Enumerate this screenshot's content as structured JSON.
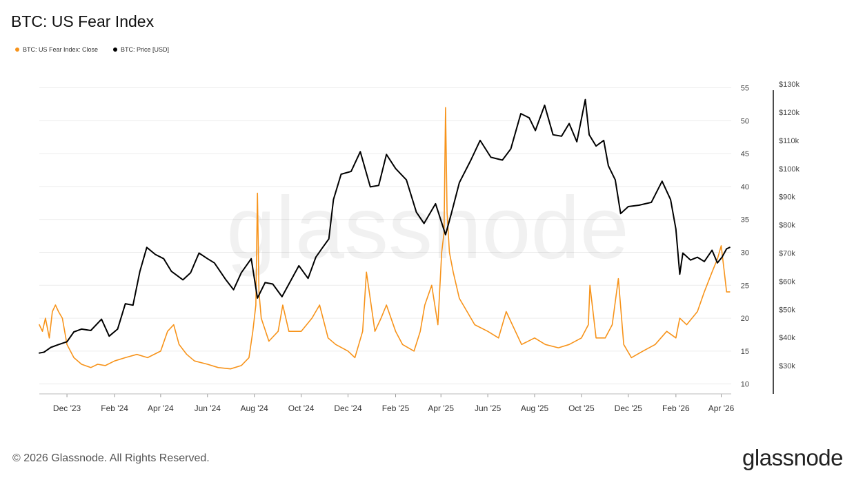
{
  "title": "BTC: US Fear Index",
  "legend": [
    {
      "label": "BTC: US Fear Index: Close",
      "color": "#f7931a"
    },
    {
      "label": "BTC: Price [USD]",
      "color": "#000000"
    }
  ],
  "footer": "© 2026 Glassnode. All Rights Reserved.",
  "brand": "glassnode",
  "watermark": "glassnode",
  "chart_data": {
    "type": "line",
    "x_tick_labels": [
      "Dec '23",
      "Feb '24",
      "Apr '24",
      "Jun '24",
      "Aug '24",
      "Oct '24",
      "Dec '24",
      "Feb '25",
      "Apr '25",
      "Jun '25",
      "Aug '25",
      "Oct '25",
      "Dec '25",
      "Feb '26",
      "Apr '26"
    ],
    "x_tick_dates": [
      "2023-12-01",
      "2024-02-01",
      "2024-04-01",
      "2024-06-01",
      "2024-08-01",
      "2024-10-01",
      "2024-12-01",
      "2025-02-01",
      "2025-04-01",
      "2025-06-01",
      "2025-08-01",
      "2025-10-01",
      "2025-12-01",
      "2026-02-01",
      "2026-04-01"
    ],
    "x_range": [
      "2023-10-26",
      "2026-04-14"
    ],
    "left_axis": {
      "ticks": [
        10,
        15,
        20,
        25,
        30,
        35,
        40,
        45,
        50,
        55
      ],
      "range": [
        8.5,
        56
      ]
    },
    "right_axis": {
      "ticks": [
        "$30k",
        "$40k",
        "$50k",
        "$60k",
        "$70k",
        "$80k",
        "$90k",
        "$100k",
        "$110k",
        "$120k",
        "$130k"
      ],
      "values": [
        30000,
        40000,
        50000,
        60000,
        70000,
        80000,
        90000,
        100000,
        110000,
        120000,
        130000
      ],
      "range": [
        20000,
        131000
      ]
    },
    "grid": true,
    "series": [
      {
        "name": "BTC: US Fear Index: Close",
        "axis": "left",
        "color": "#f7931a",
        "x": [
          "2023-10-26",
          "2023-10-30",
          "2023-11-03",
          "2023-11-08",
          "2023-11-12",
          "2023-11-16",
          "2023-11-20",
          "2023-11-25",
          "2023-12-01",
          "2023-12-10",
          "2023-12-20",
          "2024-01-01",
          "2024-01-10",
          "2024-01-20",
          "2024-02-01",
          "2024-02-15",
          "2024-03-01",
          "2024-03-15",
          "2024-04-01",
          "2024-04-10",
          "2024-04-18",
          "2024-04-25",
          "2024-05-05",
          "2024-05-15",
          "2024-06-01",
          "2024-06-15",
          "2024-07-01",
          "2024-07-15",
          "2024-07-25",
          "2024-07-30",
          "2024-08-03",
          "2024-08-05",
          "2024-08-07",
          "2024-08-10",
          "2024-08-20",
          "2024-09-01",
          "2024-09-07",
          "2024-09-15",
          "2024-10-01",
          "2024-10-15",
          "2024-10-25",
          "2024-11-05",
          "2024-11-15",
          "2024-12-01",
          "2024-12-10",
          "2024-12-20",
          "2024-12-25",
          "2025-01-05",
          "2025-01-13",
          "2025-01-20",
          "2025-02-01",
          "2025-02-10",
          "2025-02-25",
          "2025-03-05",
          "2025-03-11",
          "2025-03-20",
          "2025-03-28",
          "2025-04-02",
          "2025-04-05",
          "2025-04-07",
          "2025-04-09",
          "2025-04-12",
          "2025-04-17",
          "2025-04-25",
          "2025-05-05",
          "2025-05-15",
          "2025-06-01",
          "2025-06-15",
          "2025-06-25",
          "2025-07-15",
          "2025-08-01",
          "2025-08-15",
          "2025-09-01",
          "2025-09-15",
          "2025-10-01",
          "2025-10-10",
          "2025-10-12",
          "2025-10-20",
          "2025-11-01",
          "2025-11-10",
          "2025-11-18",
          "2025-11-25",
          "2025-12-05",
          "2025-12-20",
          "2026-01-05",
          "2026-01-20",
          "2026-02-01",
          "2026-02-06",
          "2026-02-15",
          "2026-03-01",
          "2026-03-10",
          "2026-03-20",
          "2026-03-27",
          "2026-04-01",
          "2026-04-05",
          "2026-04-08",
          "2026-04-12"
        ],
        "values": [
          19,
          18,
          20,
          17,
          21,
          22,
          21,
          20,
          16,
          14,
          13,
          12.5,
          13,
          12.8,
          13.5,
          14,
          14.5,
          14,
          15,
          18,
          19,
          16,
          14.5,
          13.5,
          13,
          12.5,
          12.3,
          12.8,
          14,
          18,
          22,
          39,
          24,
          20,
          16.5,
          18,
          22,
          18,
          18,
          20,
          22,
          17,
          16,
          15,
          14,
          18,
          27,
          18,
          20,
          22,
          18,
          16,
          15,
          18,
          22,
          25,
          19,
          30,
          33,
          52,
          36,
          30,
          27,
          23,
          21,
          19,
          18,
          17,
          21,
          16,
          17,
          16,
          15.5,
          16,
          17,
          19,
          25,
          17,
          17,
          19,
          26,
          16,
          14,
          15,
          16,
          18,
          17,
          20,
          19,
          21,
          24,
          27,
          29,
          31,
          27,
          24,
          24
        ]
      },
      {
        "name": "BTC: Price [USD]",
        "axis": "right",
        "color": "#000000",
        "x": [
          "2023-10-26",
          "2023-11-01",
          "2023-11-10",
          "2023-11-20",
          "2023-12-01",
          "2023-12-10",
          "2023-12-20",
          "2024-01-01",
          "2024-01-15",
          "2024-01-25",
          "2024-02-05",
          "2024-02-15",
          "2024-02-25",
          "2024-03-05",
          "2024-03-14",
          "2024-03-25",
          "2024-04-05",
          "2024-04-15",
          "2024-04-30",
          "2024-05-10",
          "2024-05-21",
          "2024-06-01",
          "2024-06-10",
          "2024-06-25",
          "2024-07-05",
          "2024-07-15",
          "2024-07-28",
          "2024-08-05",
          "2024-08-15",
          "2024-08-25",
          "2024-09-06",
          "2024-09-15",
          "2024-09-28",
          "2024-10-10",
          "2024-10-20",
          "2024-10-29",
          "2024-11-06",
          "2024-11-12",
          "2024-11-22",
          "2024-12-05",
          "2024-12-17",
          "2024-12-30",
          "2025-01-10",
          "2025-01-20",
          "2025-02-01",
          "2025-02-15",
          "2025-02-28",
          "2025-03-10",
          "2025-03-25",
          "2025-04-07",
          "2025-04-15",
          "2025-04-25",
          "2025-05-10",
          "2025-05-22",
          "2025-06-05",
          "2025-06-20",
          "2025-07-01",
          "2025-07-14",
          "2025-07-25",
          "2025-08-02",
          "2025-08-14",
          "2025-08-25",
          "2025-09-05",
          "2025-09-15",
          "2025-09-25",
          "2025-10-06",
          "2025-10-11",
          "2025-10-20",
          "2025-10-30",
          "2025-11-05",
          "2025-11-14",
          "2025-11-21",
          "2025-12-01",
          "2025-12-15",
          "2025-12-31",
          "2026-01-14",
          "2026-01-25",
          "2026-02-01",
          "2026-02-06",
          "2026-02-10",
          "2026-02-20",
          "2026-03-01",
          "2026-03-10",
          "2026-03-20",
          "2026-03-27",
          "2026-04-02",
          "2026-04-08",
          "2026-04-12"
        ],
        "values": [
          34500,
          34800,
          36500,
          37500,
          38500,
          42000,
          43000,
          42500,
          46500,
          40500,
          43000,
          52000,
          51500,
          63500,
          72000,
          69500,
          68000,
          63500,
          60500,
          63000,
          70000,
          68000,
          66500,
          60500,
          57000,
          63000,
          68000,
          54000,
          59500,
          59000,
          54500,
          59000,
          65500,
          61000,
          68500,
          72000,
          75000,
          89000,
          98000,
          99000,
          106000,
          93500,
          94000,
          105000,
          100000,
          96000,
          84500,
          80500,
          87500,
          76500,
          84500,
          95000,
          103000,
          110000,
          104000,
          103000,
          107000,
          119500,
          118000,
          113500,
          122500,
          112000,
          111500,
          116000,
          109500,
          124500,
          112000,
          108000,
          110000,
          101000,
          96000,
          84000,
          86500,
          87000,
          88000,
          95500,
          89000,
          78500,
          62500,
          70000,
          67500,
          68500,
          67000,
          71000,
          66500,
          68500,
          71500,
          72000
        ]
      }
    ]
  }
}
